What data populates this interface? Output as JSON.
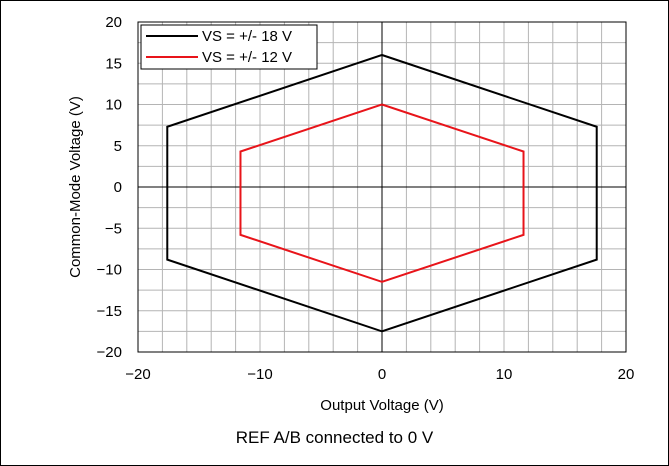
{
  "chart_data": {
    "type": "line",
    "xlabel": "Output Voltage (V)",
    "ylabel": "Common-Mode Voltage (V)",
    "xlim": [
      -20,
      20
    ],
    "ylim": [
      -20,
      20
    ],
    "x_ticks": [
      -20,
      -10,
      0,
      10,
      20
    ],
    "y_ticks": [
      -20,
      -15,
      -10,
      -5,
      0,
      5,
      10,
      15,
      20
    ],
    "x_tick_labels": [
      "−20",
      "−10",
      "0",
      "10",
      "20"
    ],
    "y_tick_labels": [
      "−20",
      "−15",
      "−10",
      "−5",
      "0",
      "5",
      "10",
      "15",
      "20"
    ],
    "grid": true,
    "legend_position": "top-left",
    "series": [
      {
        "name": "VS = +/- 18 V",
        "color": "#000000",
        "x": [
          0,
          17.6,
          17.6,
          0,
          -17.6,
          -17.6,
          0
        ],
        "y": [
          16.0,
          7.3,
          -8.8,
          -17.5,
          -8.8,
          7.3,
          16.0
        ]
      },
      {
        "name": "VS = +/- 12 V",
        "color": "#e8141a",
        "x": [
          0,
          11.6,
          11.6,
          0,
          -11.6,
          -11.6,
          0
        ],
        "y": [
          10.0,
          4.3,
          -5.8,
          -11.5,
          -5.8,
          4.3,
          10.0
        ]
      }
    ],
    "caption": "REF A/B connected to 0 V"
  }
}
